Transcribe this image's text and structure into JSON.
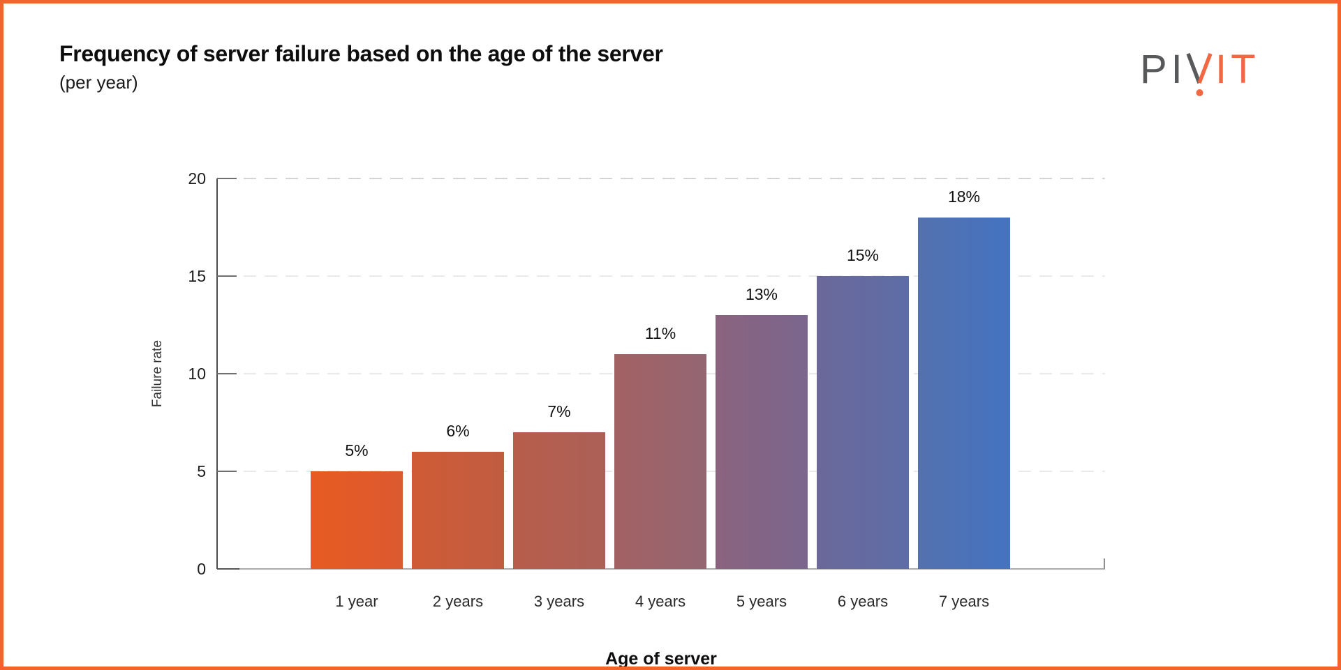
{
  "chart_data": {
    "type": "bar",
    "title": "Frequency of server failure based on the age of the server",
    "subtitle": "(per year)",
    "categories": [
      "1 year",
      "2 years",
      "3 years",
      "4 years",
      "5 years",
      "6 years",
      "7 years"
    ],
    "values": [
      5,
      6,
      7,
      11,
      13,
      15,
      18
    ],
    "value_labels": [
      "5%",
      "6%",
      "7%",
      "11%",
      "13%",
      "15%",
      "18%"
    ],
    "xlabel": "Age of server",
    "ylabel": "Failure rate",
    "ylim": [
      0,
      20
    ],
    "yticks": [
      0,
      5,
      10,
      15,
      20
    ],
    "grid": "horizontal-dashed",
    "legend": "none",
    "bar_gradients": [
      [
        "#E75B21",
        "#DC5A30"
      ],
      [
        "#CF5B35",
        "#C15C42"
      ],
      [
        "#B85D4B",
        "#AB6057"
      ],
      [
        "#A36163",
        "#936673"
      ],
      [
        "#8A637E",
        "#7B668E"
      ],
      [
        "#6B689A",
        "#5E6DA7"
      ],
      [
        "#5471AE",
        "#4473C1"
      ]
    ]
  },
  "logo": {
    "part1": "PI",
    "part2": "IT",
    "gray": "#58595B",
    "orange": "#F26843"
  },
  "colors": {
    "border": "#F1642D",
    "background": "#FFFFFF"
  }
}
